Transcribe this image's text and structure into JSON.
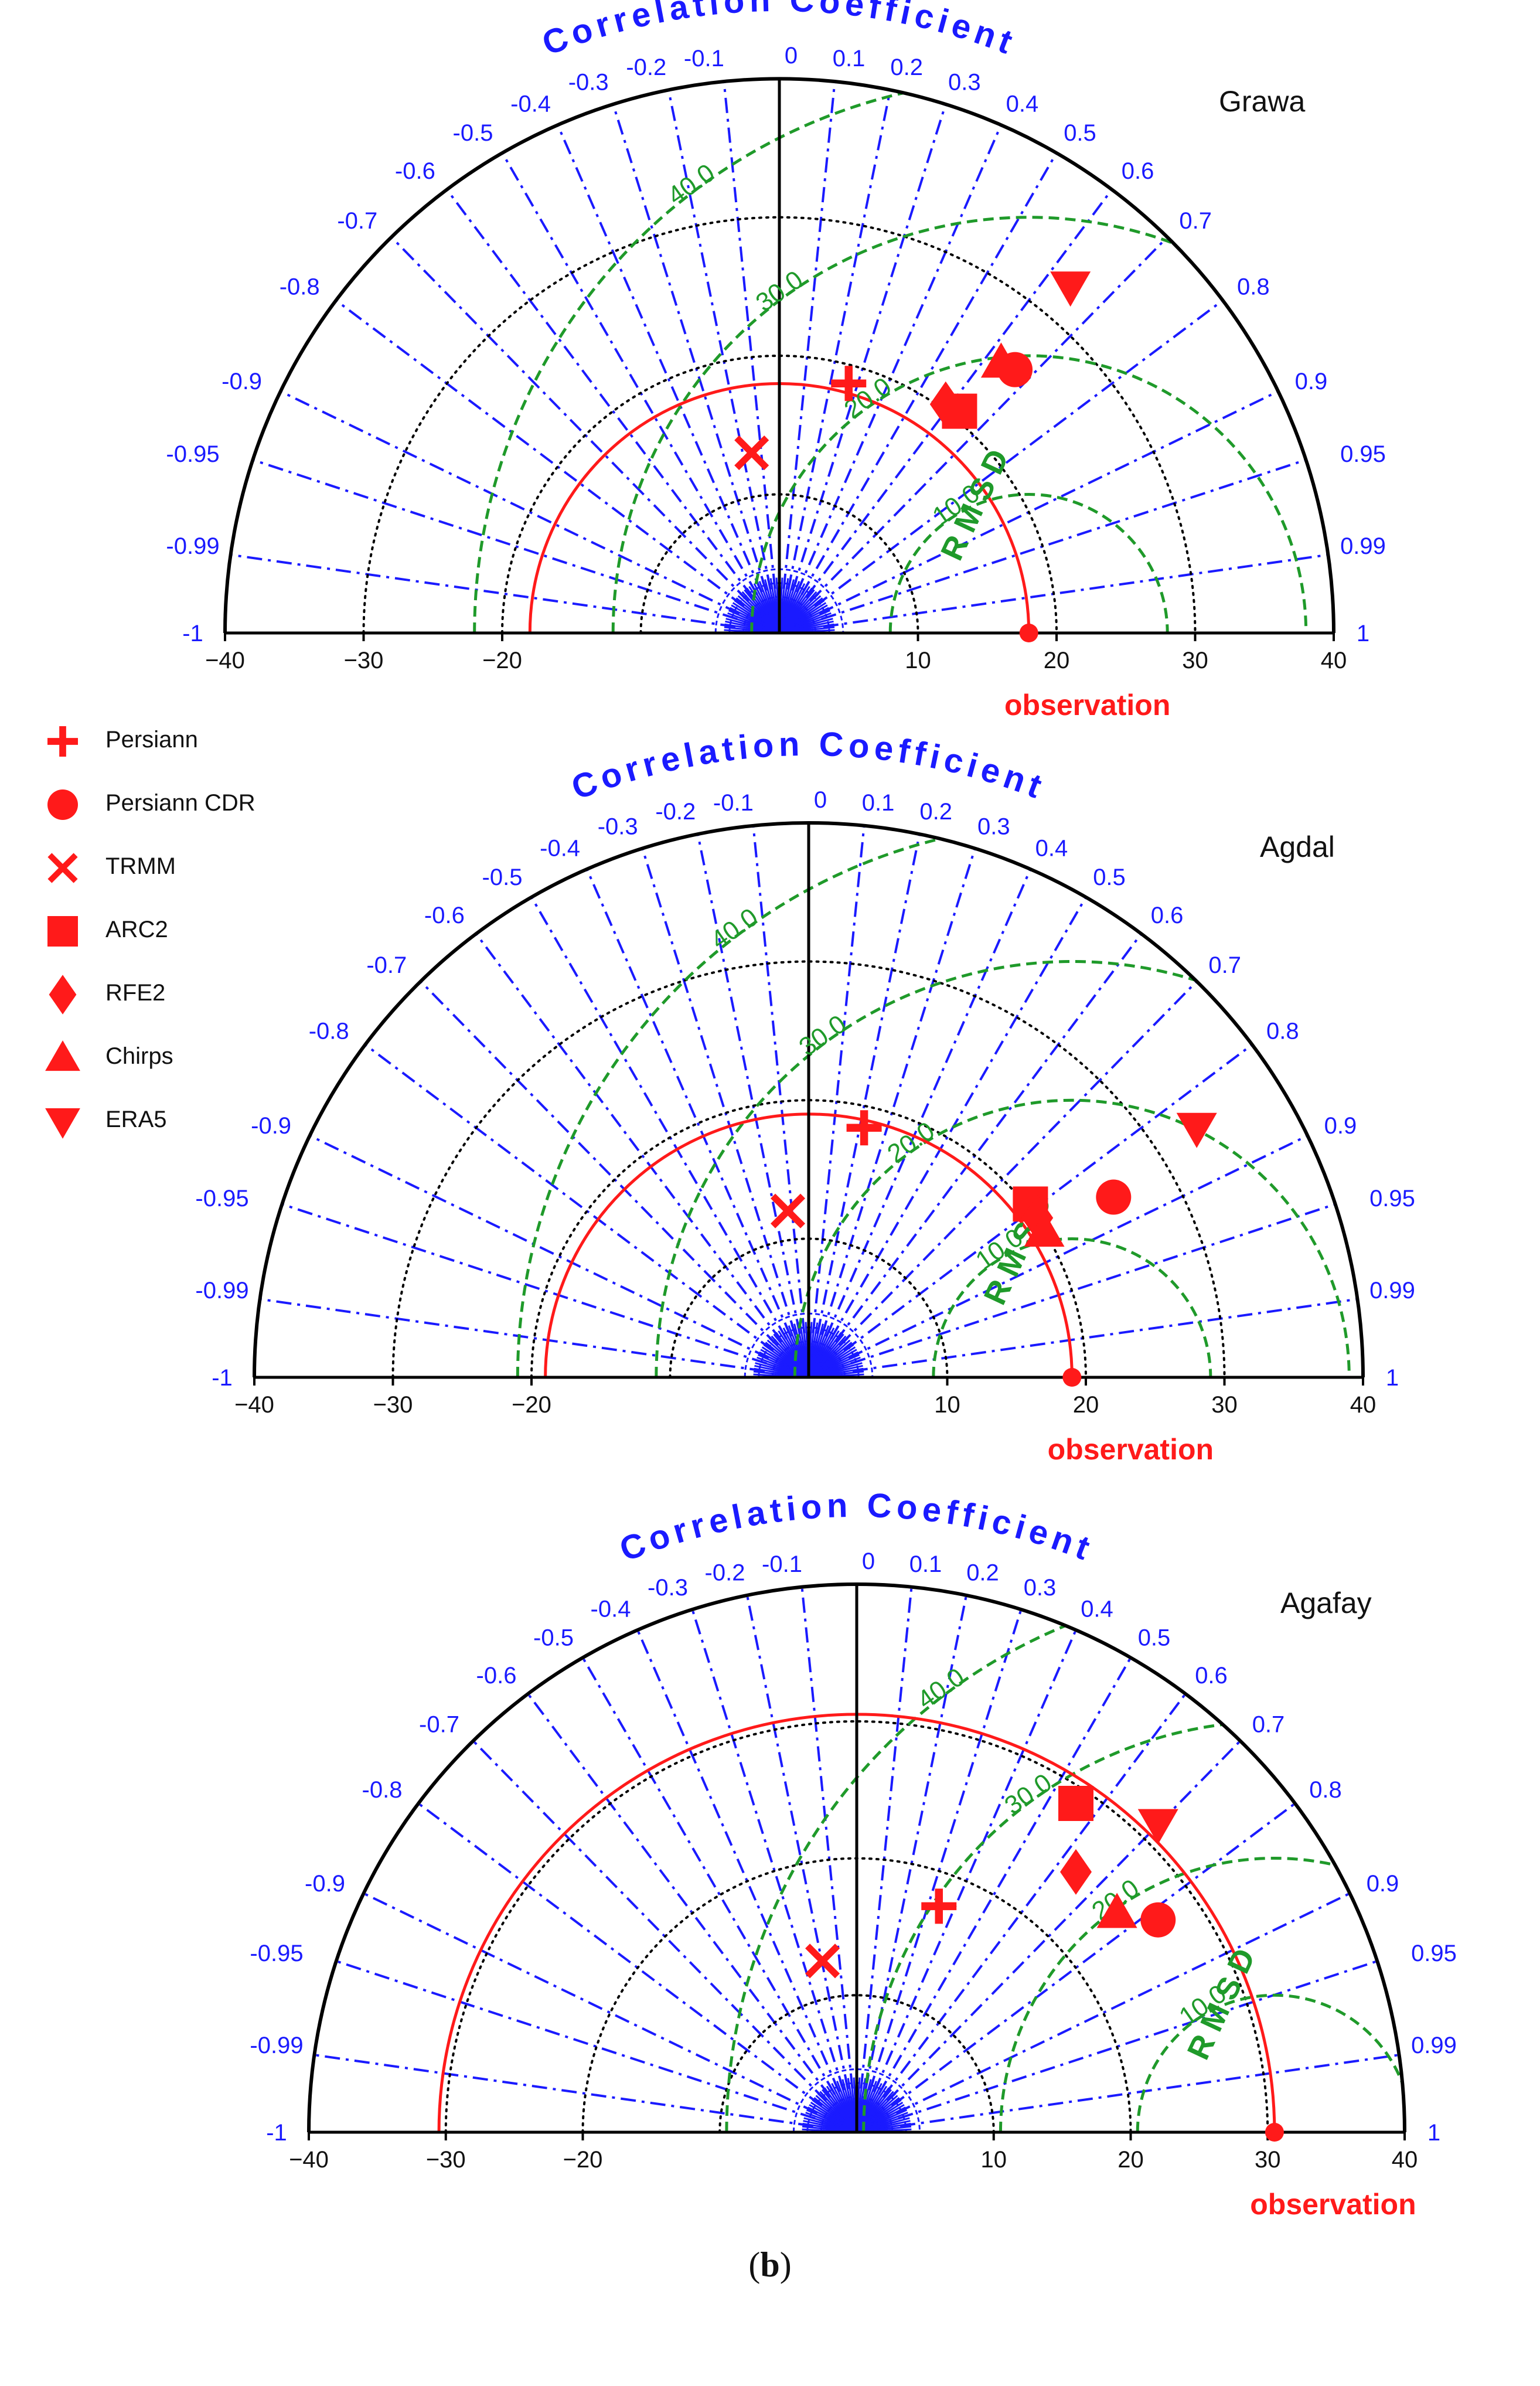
{
  "chart_data": [
    {
      "type": "taylor-diagram",
      "title": "Grawa",
      "correlation_axis_label": "Correlation Coefficient",
      "rmsd_label": "RMSD",
      "observation_label": "observation",
      "x_range": [
        -40,
        40
      ],
      "x_ticks": [
        "−40",
        "−30",
        "−20",
        "10",
        "20",
        "30",
        "40"
      ],
      "rmsd_contours": [
        10.0,
        20.0,
        30.0,
        40.0
      ],
      "observation_std": 18,
      "series": [
        {
          "name": "Persiann",
          "x": 5,
          "y": 18
        },
        {
          "name": "Persiann CDR",
          "x": 17,
          "y": 19
        },
        {
          "name": "TRMM",
          "x": -2,
          "y": 13
        },
        {
          "name": "ARC2",
          "x": 13,
          "y": 16
        },
        {
          "name": "RFE2",
          "x": 12,
          "y": 16.5
        },
        {
          "name": "Chirps",
          "x": 16,
          "y": 19.5
        },
        {
          "name": "ERA5",
          "x": 21,
          "y": 25
        }
      ]
    },
    {
      "type": "taylor-diagram",
      "title": "Agdal",
      "correlation_axis_label": "Correlation Coefficient",
      "rmsd_label": "RMSD",
      "observation_label": "observation",
      "x_range": [
        -40,
        40
      ],
      "x_ticks": [
        "−40",
        "−30",
        "−20",
        "10",
        "20",
        "30",
        "40"
      ],
      "rmsd_contours": [
        10.0,
        20.0,
        30.0,
        40.0
      ],
      "observation_std": 19,
      "series": [
        {
          "name": "Persiann",
          "x": 4,
          "y": 18
        },
        {
          "name": "Persiann CDR",
          "x": 22,
          "y": 13
        },
        {
          "name": "TRMM",
          "x": -1.5,
          "y": 12
        },
        {
          "name": "ARC2",
          "x": 16,
          "y": 12.5
        },
        {
          "name": "RFE2",
          "x": 16.5,
          "y": 11.5
        },
        {
          "name": "Chirps",
          "x": 17,
          "y": 10.5
        },
        {
          "name": "ERA5",
          "x": 28,
          "y": 18
        }
      ]
    },
    {
      "type": "taylor-diagram",
      "title": "Agafay",
      "correlation_axis_label": "Correlation Coefficient",
      "rmsd_label": "RMSD",
      "observation_label": "observation",
      "x_range": [
        -40,
        40
      ],
      "x_ticks": [
        "−40",
        "−30",
        "−20",
        "10",
        "20",
        "30",
        "40"
      ],
      "rmsd_contours": [
        10.0,
        20.0,
        30.0,
        40.0
      ],
      "observation_std": 30.5,
      "series": [
        {
          "name": "Persiann",
          "x": 6,
          "y": 16.5
        },
        {
          "name": "Persiann CDR",
          "x": 22,
          "y": 15.5
        },
        {
          "name": "TRMM",
          "x": -2.5,
          "y": 12.5
        },
        {
          "name": "ARC2",
          "x": 16,
          "y": 24
        },
        {
          "name": "RFE2",
          "x": 16,
          "y": 19
        },
        {
          "name": "Chirps",
          "x": 19,
          "y": 16
        },
        {
          "name": "ERA5",
          "x": 22,
          "y": 22.5
        }
      ]
    }
  ],
  "correlation_ticks": {
    "positive": [
      "0",
      "0.1",
      "0.2",
      "0.3",
      "0.4",
      "0.5",
      "0.6",
      "0.7",
      "0.8",
      "0.9",
      "0.95",
      "0.99",
      "1"
    ],
    "negative": [
      "-0.1",
      "-0.2",
      "-0.3",
      "-0.4",
      "-0.5",
      "-0.6",
      "-0.7",
      "-0.8",
      "-0.9",
      "-0.95",
      "-0.99",
      "-1"
    ]
  },
  "legend": [
    {
      "name": "Persiann",
      "marker": "plus"
    },
    {
      "name": "Persiann CDR",
      "marker": "circle"
    },
    {
      "name": "TRMM",
      "marker": "x"
    },
    {
      "name": "ARC2",
      "marker": "square"
    },
    {
      "name": "RFE2",
      "marker": "diamond"
    },
    {
      "name": "Chirps",
      "marker": "triangle-up"
    },
    {
      "name": "ERA5",
      "marker": "triangle-down"
    }
  ],
  "colors": {
    "marker": "#ff1a1a",
    "correlation": "#1a1aff",
    "rmsd": "#1f9a2a",
    "axis": "#000000",
    "std_dotted": "#000000",
    "observation": "#ff1a1a"
  },
  "caption": {
    "open": "(",
    "letter": "b",
    "close": ")"
  }
}
